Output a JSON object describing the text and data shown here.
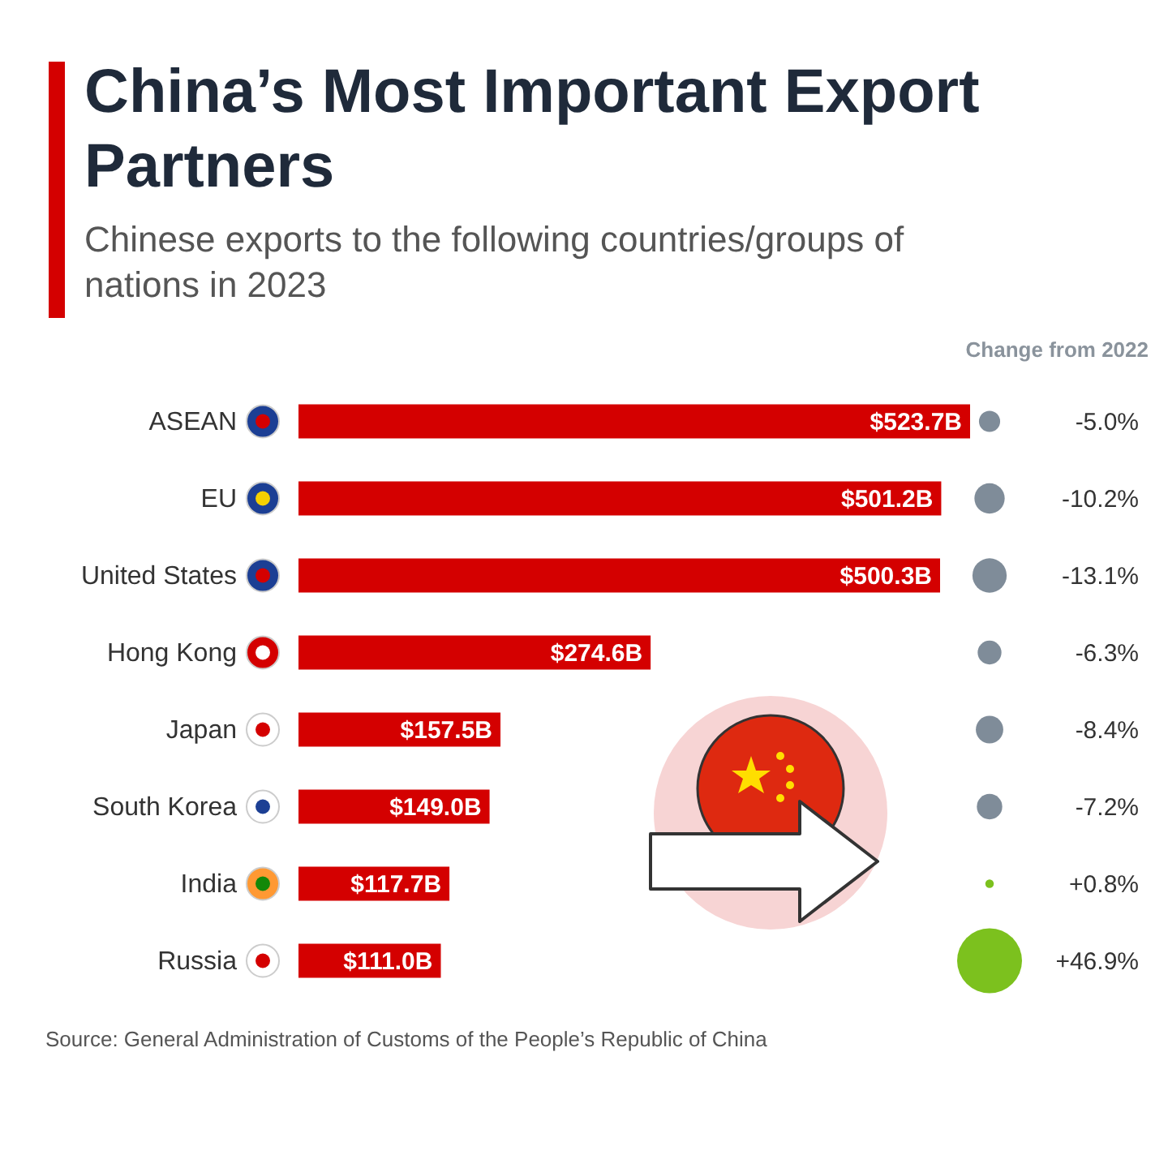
{
  "chart_data": [
    {
      "type": "bar",
      "orientation": "horizontal",
      "title": "China’s Most Important Export Partners",
      "subtitle": "Chinese exports to the following countries/groups of nations in 2023",
      "categories": [
        "ASEAN",
        "EU",
        "United States",
        "Hong Kong",
        "Japan",
        "South Korea",
        "India",
        "Russia"
      ],
      "values": [
        523.7,
        501.2,
        500.3,
        274.6,
        157.5,
        149.0,
        117.7,
        111.0
      ],
      "value_labels": [
        "$523.7B",
        "$501.2B",
        "$500.3B",
        "$274.6B",
        "$157.5B",
        "$149.0B",
        "$117.7B",
        "$111.0B"
      ],
      "color": "#d40000",
      "annotations": [
        "Source: General Administration of Customs of the People’s Republic of China"
      ]
    },
    {
      "type": "other",
      "title": "Change from 2022",
      "categories": [
        null,
        null,
        null,
        null,
        null,
        null,
        null,
        null
      ],
      "values": [
        -5.0,
        -10.2,
        -13.1,
        -6.3,
        -8.4,
        -7.2,
        0.8,
        46.9
      ],
      "value_labels": [
        "-5.0%",
        "-10.2%",
        "-13.1%",
        "-6.3%",
        "-8.4%",
        "-7.2%",
        "+0.8%",
        "+46.9%"
      ],
      "colors": [
        "#7f8c99",
        "#7f8c99",
        "#7f8c99",
        "#7f8c99",
        "#7f8c99",
        "#7f8c99",
        "#7cc11e",
        "#7cc11e"
      ]
    }
  ]
}
